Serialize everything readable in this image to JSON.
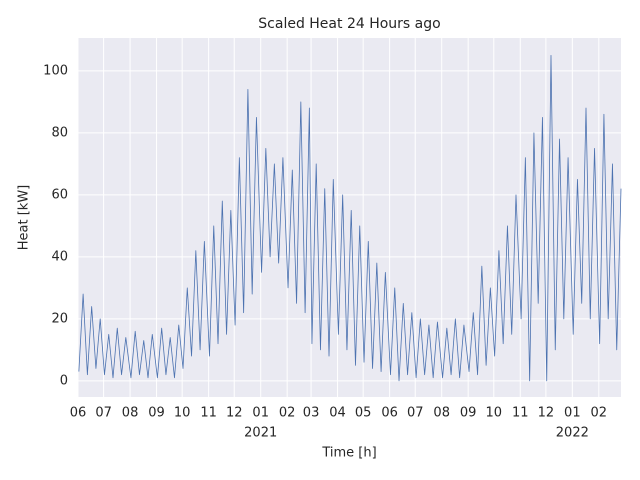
{
  "chart_data": {
    "type": "line",
    "title": "Scaled Heat 24 Hours ago",
    "xlabel": "Time [h]",
    "ylabel": "Heat [kW]",
    "color": "#4c72b0",
    "grid": true,
    "xlim": [
      "2020-06-01",
      "2022-02-27"
    ],
    "ylim": [
      -5.2,
      110.6
    ],
    "yticks": [
      0,
      20,
      40,
      60,
      80,
      100
    ],
    "xticks": [
      {
        "value": "2020-06-01",
        "label": "06"
      },
      {
        "value": "2020-07-01",
        "label": "07"
      },
      {
        "value": "2020-08-01",
        "label": "08"
      },
      {
        "value": "2020-09-01",
        "label": "09"
      },
      {
        "value": "2020-10-01",
        "label": "10"
      },
      {
        "value": "2020-11-01",
        "label": "11"
      },
      {
        "value": "2020-12-01",
        "label": "12"
      },
      {
        "value": "2021-01-01",
        "label": "01",
        "year": "2021"
      },
      {
        "value": "2021-02-01",
        "label": "02"
      },
      {
        "value": "2021-03-01",
        "label": "03"
      },
      {
        "value": "2021-04-01",
        "label": "04"
      },
      {
        "value": "2021-05-01",
        "label": "05"
      },
      {
        "value": "2021-06-01",
        "label": "06"
      },
      {
        "value": "2021-07-01",
        "label": "07"
      },
      {
        "value": "2021-08-01",
        "label": "08"
      },
      {
        "value": "2021-09-01",
        "label": "09"
      },
      {
        "value": "2021-10-01",
        "label": "10"
      },
      {
        "value": "2021-11-01",
        "label": "11"
      },
      {
        "value": "2021-12-01",
        "label": "12"
      },
      {
        "value": "2022-01-01",
        "label": "01",
        "year": "2022"
      },
      {
        "value": "2022-02-01",
        "label": "02"
      }
    ],
    "x": [
      "2020-06-02",
      "2020-06-07",
      "2020-06-12",
      "2020-06-17",
      "2020-06-22",
      "2020-06-27",
      "2020-07-02",
      "2020-07-07",
      "2020-07-12",
      "2020-07-17",
      "2020-07-22",
      "2020-07-27",
      "2020-08-02",
      "2020-08-07",
      "2020-08-12",
      "2020-08-17",
      "2020-08-22",
      "2020-08-27",
      "2020-09-02",
      "2020-09-07",
      "2020-09-12",
      "2020-09-17",
      "2020-09-22",
      "2020-09-27",
      "2020-10-02",
      "2020-10-07",
      "2020-10-12",
      "2020-10-17",
      "2020-10-22",
      "2020-10-27",
      "2020-11-02",
      "2020-11-07",
      "2020-11-12",
      "2020-11-17",
      "2020-11-22",
      "2020-11-27",
      "2020-12-02",
      "2020-12-07",
      "2020-12-12",
      "2020-12-17",
      "2020-12-22",
      "2020-12-27",
      "2021-01-02",
      "2021-01-07",
      "2021-01-12",
      "2021-01-17",
      "2021-01-22",
      "2021-01-27",
      "2021-02-02",
      "2021-02-07",
      "2021-02-12",
      "2021-02-17",
      "2021-02-22",
      "2021-02-27",
      "2021-03-02",
      "2021-03-07",
      "2021-03-12",
      "2021-03-17",
      "2021-03-22",
      "2021-03-27",
      "2021-04-02",
      "2021-04-07",
      "2021-04-12",
      "2021-04-17",
      "2021-04-22",
      "2021-04-27",
      "2021-05-02",
      "2021-05-07",
      "2021-05-12",
      "2021-05-17",
      "2021-05-22",
      "2021-05-27",
      "2021-06-02",
      "2021-06-07",
      "2021-06-12",
      "2021-06-17",
      "2021-06-22",
      "2021-06-27",
      "2021-07-02",
      "2021-07-07",
      "2021-07-12",
      "2021-07-17",
      "2021-07-22",
      "2021-07-27",
      "2021-08-02",
      "2021-08-07",
      "2021-08-12",
      "2021-08-17",
      "2021-08-22",
      "2021-08-27",
      "2021-09-02",
      "2021-09-07",
      "2021-09-12",
      "2021-09-17",
      "2021-09-22",
      "2021-09-27",
      "2021-10-02",
      "2021-10-07",
      "2021-10-12",
      "2021-10-17",
      "2021-10-22",
      "2021-10-27",
      "2021-11-02",
      "2021-11-07",
      "2021-11-12",
      "2021-11-17",
      "2021-11-22",
      "2021-11-27",
      "2021-12-02",
      "2021-12-07",
      "2021-12-12",
      "2021-12-17",
      "2021-12-22",
      "2021-12-27",
      "2022-01-02",
      "2022-01-07",
      "2022-01-12",
      "2022-01-17",
      "2022-01-22",
      "2022-01-27",
      "2022-02-02",
      "2022-02-07",
      "2022-02-12",
      "2022-02-17",
      "2022-02-22",
      "2022-02-27"
    ],
    "values": [
      3,
      28,
      2,
      24,
      4,
      20,
      2,
      15,
      1,
      17,
      2,
      14,
      1,
      16,
      2,
      13,
      1,
      15,
      1,
      17,
      2,
      14,
      1,
      18,
      4,
      30,
      8,
      42,
      10,
      45,
      8,
      50,
      12,
      58,
      15,
      55,
      18,
      72,
      22,
      94,
      28,
      85,
      35,
      75,
      40,
      70,
      38,
      72,
      30,
      68,
      25,
      90,
      22,
      88,
      12,
      70,
      10,
      62,
      8,
      65,
      15,
      60,
      10,
      55,
      5,
      50,
      6,
      45,
      4,
      38,
      3,
      35,
      2,
      30,
      0,
      25,
      2,
      22,
      1,
      20,
      2,
      18,
      1,
      19,
      1,
      17,
      2,
      20,
      1,
      18,
      3,
      22,
      2,
      37,
      5,
      30,
      8,
      42,
      12,
      50,
      15,
      60,
      20,
      72,
      0,
      80,
      25,
      85,
      0,
      105,
      10,
      78,
      20,
      72,
      15,
      65,
      25,
      88,
      20,
      75,
      12,
      86,
      20,
      70,
      10,
      62
    ]
  }
}
